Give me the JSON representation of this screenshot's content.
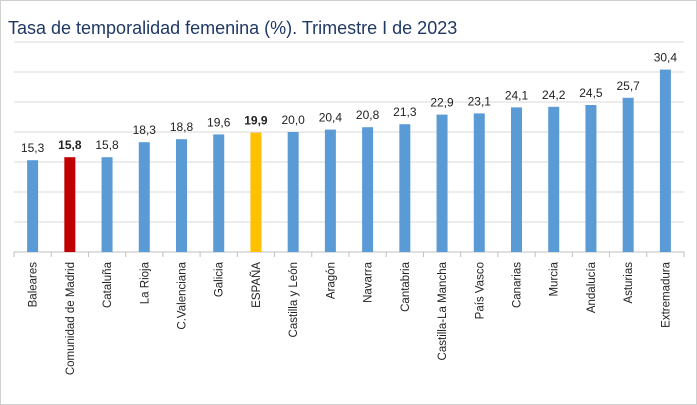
{
  "chart_data": {
    "type": "bar",
    "title": "Tasa de temporalidad femenina (%). Trimestre I de 2023",
    "categories": [
      "Baleares",
      "Comunidad de Madrid",
      "Cataluña",
      "La Rioja",
      "C.Valenciana",
      "Galicia",
      "ESPAÑA",
      "Castilla y León",
      "Aragón",
      "Navarra",
      "Cantabria",
      "Castilla-La Mancha",
      "País Vasco",
      "Canarias",
      "Murcia",
      "Andalucía",
      "Asturias",
      "Extremadura"
    ],
    "values": [
      15.3,
      15.8,
      15.8,
      18.3,
      18.8,
      19.6,
      19.9,
      20.0,
      20.4,
      20.8,
      21.3,
      22.9,
      23.1,
      24.1,
      24.2,
      24.5,
      25.7,
      30.4
    ],
    "value_labels": [
      "15,3",
      "15,8",
      "15,8",
      "18,3",
      "18,8",
      "19,6",
      "19,9",
      "20,0",
      "20,4",
      "20,8",
      "21,3",
      "22,9",
      "23,1",
      "24,1",
      "24,2",
      "24,5",
      "25,7",
      "30,4"
    ],
    "colors": [
      "#5b9bd5",
      "#c00000",
      "#5b9bd5",
      "#5b9bd5",
      "#5b9bd5",
      "#5b9bd5",
      "#ffc000",
      "#5b9bd5",
      "#5b9bd5",
      "#5b9bd5",
      "#5b9bd5",
      "#5b9bd5",
      "#5b9bd5",
      "#5b9bd5",
      "#5b9bd5",
      "#5b9bd5",
      "#5b9bd5",
      "#5b9bd5"
    ],
    "bold_labels": [
      false,
      true,
      false,
      false,
      false,
      false,
      true,
      false,
      false,
      false,
      false,
      false,
      false,
      false,
      false,
      false,
      false,
      false
    ],
    "ylim": [
      0,
      35
    ],
    "yticks": [
      0,
      5,
      10,
      15,
      20,
      25,
      30,
      35
    ],
    "grid": true
  }
}
